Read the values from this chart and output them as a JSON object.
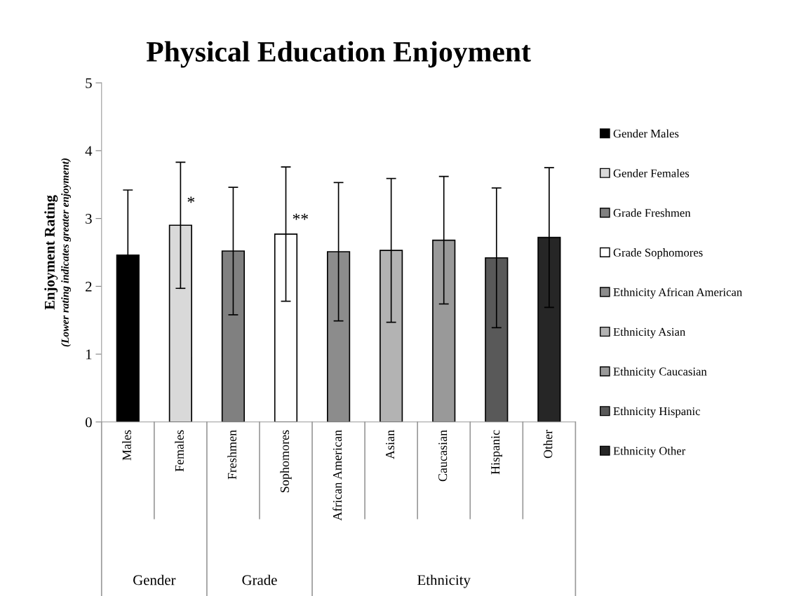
{
  "chart_data": {
    "type": "bar",
    "title": "Physical Education Enjoyment",
    "ylabel": "Enjoyment Rating",
    "categories": [
      "Males",
      "Females",
      "Freshmen",
      "Sophomores",
      "African American",
      "Asian",
      "Caucasian",
      "Hispanic",
      "Other"
    ],
    "series": [
      {
        "name": "Gender Males",
        "color": "#000000",
        "values": [
          2.46,
          null,
          null,
          null,
          null,
          null,
          null,
          null,
          null
        ],
        "errors": [
          0.96,
          null,
          null,
          null,
          null,
          null,
          null,
          null,
          null
        ]
      },
      {
        "name": "Gender Females",
        "color": "#d9d9d9",
        "values": [
          null,
          2.9,
          null,
          null,
          null,
          null,
          null,
          null,
          null
        ],
        "errors": [
          null,
          0.93,
          null,
          null,
          null,
          null,
          null,
          null,
          null
        ]
      },
      {
        "name": "Grade Freshmen",
        "color": "#808080",
        "values": [
          null,
          null,
          2.52,
          null,
          null,
          null,
          null,
          null,
          null
        ],
        "errors": [
          null,
          null,
          0.94,
          null,
          null,
          null,
          null,
          null,
          null
        ]
      },
      {
        "name": "Grade Sophomores",
        "color": "#ffffff",
        "values": [
          null,
          null,
          null,
          2.77,
          null,
          null,
          null,
          null,
          null
        ],
        "errors": [
          null,
          null,
          null,
          0.99,
          null,
          null,
          null,
          null,
          null
        ]
      },
      {
        "name": "Ethnicity African American",
        "color": "#8c8c8c",
        "values": [
          null,
          null,
          null,
          null,
          2.51,
          null,
          null,
          null,
          null
        ],
        "errors": [
          null,
          null,
          null,
          null,
          1.02,
          null,
          null,
          null,
          null
        ]
      },
      {
        "name": "Ethnicity Asian",
        "color": "#b3b3b3",
        "values": [
          null,
          null,
          null,
          null,
          null,
          2.53,
          null,
          null,
          null
        ],
        "errors": [
          null,
          null,
          null,
          null,
          null,
          1.06,
          null,
          null,
          null
        ]
      },
      {
        "name": "Ethnicity Caucasian",
        "color": "#999999",
        "values": [
          null,
          null,
          null,
          null,
          null,
          null,
          2.68,
          null,
          null
        ],
        "errors": [
          null,
          null,
          null,
          null,
          null,
          null,
          0.94,
          null,
          null
        ]
      },
      {
        "name": "Ethnicity Hispanic",
        "color": "#595959",
        "values": [
          null,
          null,
          null,
          null,
          null,
          null,
          null,
          2.42,
          null
        ],
        "errors": [
          null,
          null,
          null,
          null,
          null,
          null,
          null,
          1.03,
          null
        ]
      },
      {
        "name": "Ethnicity Other",
        "color": "#262626",
        "values": [
          null,
          null,
          null,
          null,
          null,
          null,
          null,
          null,
          2.72
        ],
        "errors": [
          null,
          null,
          null,
          null,
          null,
          null,
          null,
          null,
          1.03
        ]
      }
    ],
    "ylim": [
      0,
      5
    ],
    "yticks": [
      0,
      1,
      2,
      3,
      4,
      5
    ],
    "grid": false,
    "legend": "right",
    "annotations": [
      "(Lower rating indicates greater enjoyment)",
      "Gender",
      "Grade",
      "Ethnicity",
      {
        "text": "*",
        "x": "Females",
        "y": 3.22
      },
      {
        "text": "**",
        "x": "Sophomores",
        "y": 2.97
      }
    ]
  }
}
